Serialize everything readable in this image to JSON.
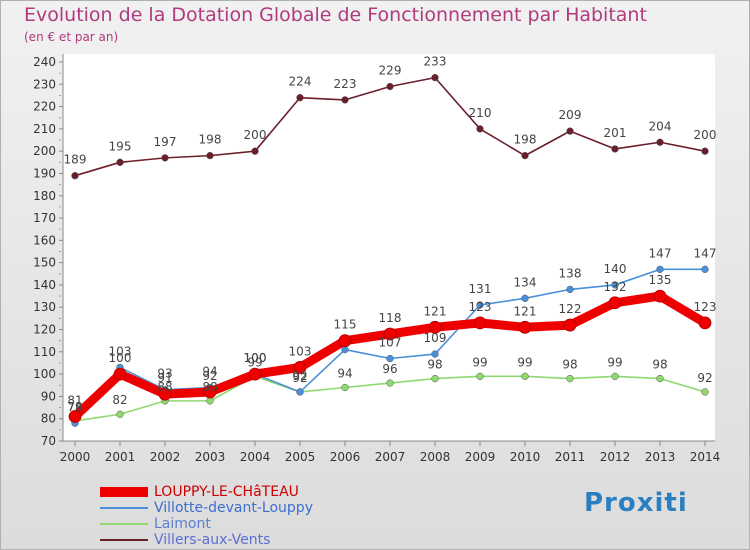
{
  "header": {
    "title": "Evolution de la Dotation Globale de Fonctionnement par Habitant",
    "subtitle": "(en € et par an)"
  },
  "logo": {
    "text": "Proxiti"
  },
  "chart_data": {
    "type": "line",
    "title": "Evolution de la Dotation Globale de Fonctionnement par Habitant",
    "subtitle": "(en € et par an)",
    "x": [
      "2000",
      "2001",
      "2002",
      "2003",
      "2004",
      "2005",
      "2006",
      "2007",
      "2008",
      "2009",
      "2010",
      "2011",
      "2012",
      "2013",
      "2014"
    ],
    "ylim": [
      70,
      240
    ],
    "yticks": [
      70,
      80,
      90,
      100,
      110,
      120,
      130,
      140,
      150,
      160,
      170,
      180,
      190,
      200,
      210,
      220,
      230,
      240
    ],
    "grid": false,
    "legend_position": "bottom-left",
    "series": [
      {
        "name": "LOUPPY-LE-CHâTEAU",
        "color": "#ee0000",
        "values": [
          81,
          100,
          91,
          92,
          100,
          103,
          115,
          118,
          121,
          123,
          121,
          122,
          132,
          135,
          123
        ],
        "labels": [
          "81",
          "100",
          "91",
          "92",
          "100",
          "103",
          "115",
          "118",
          "121",
          "123",
          "121",
          "122",
          "132",
          "135",
          "123"
        ]
      },
      {
        "name": "Villotte-devant-Louppy",
        "color": "#4a90d9",
        "values": [
          78,
          103,
          93,
          94,
          100,
          92,
          111,
          107,
          109,
          131,
          134,
          138,
          140,
          147,
          147
        ],
        "labels": [
          "78",
          "103",
          "93",
          "94",
          "100",
          "92",
          "",
          "107",
          "109",
          "131",
          "134",
          "138",
          "140",
          "147",
          "147"
        ]
      },
      {
        "name": "Laimont",
        "color": "#90d870",
        "values": [
          79,
          82,
          88,
          88,
          99,
          92,
          94,
          96,
          98,
          99,
          99,
          98,
          99,
          98,
          92
        ],
        "labels": [
          "79",
          "82",
          "88",
          "88",
          "99",
          "92",
          "94",
          "96",
          "98",
          "99",
          "99",
          "98",
          "99",
          "98",
          "92"
        ]
      },
      {
        "name": "Villers-aux-Vents",
        "color": "#6b1f2a",
        "values": [
          189,
          195,
          197,
          198,
          200,
          224,
          223,
          229,
          233,
          210,
          198,
          209,
          201,
          204,
          200
        ],
        "labels": [
          "189",
          "195",
          "197",
          "198",
          "200",
          "224",
          "223",
          "229",
          "233",
          "210",
          "198",
          "209",
          "201",
          "204",
          "200"
        ]
      }
    ]
  }
}
